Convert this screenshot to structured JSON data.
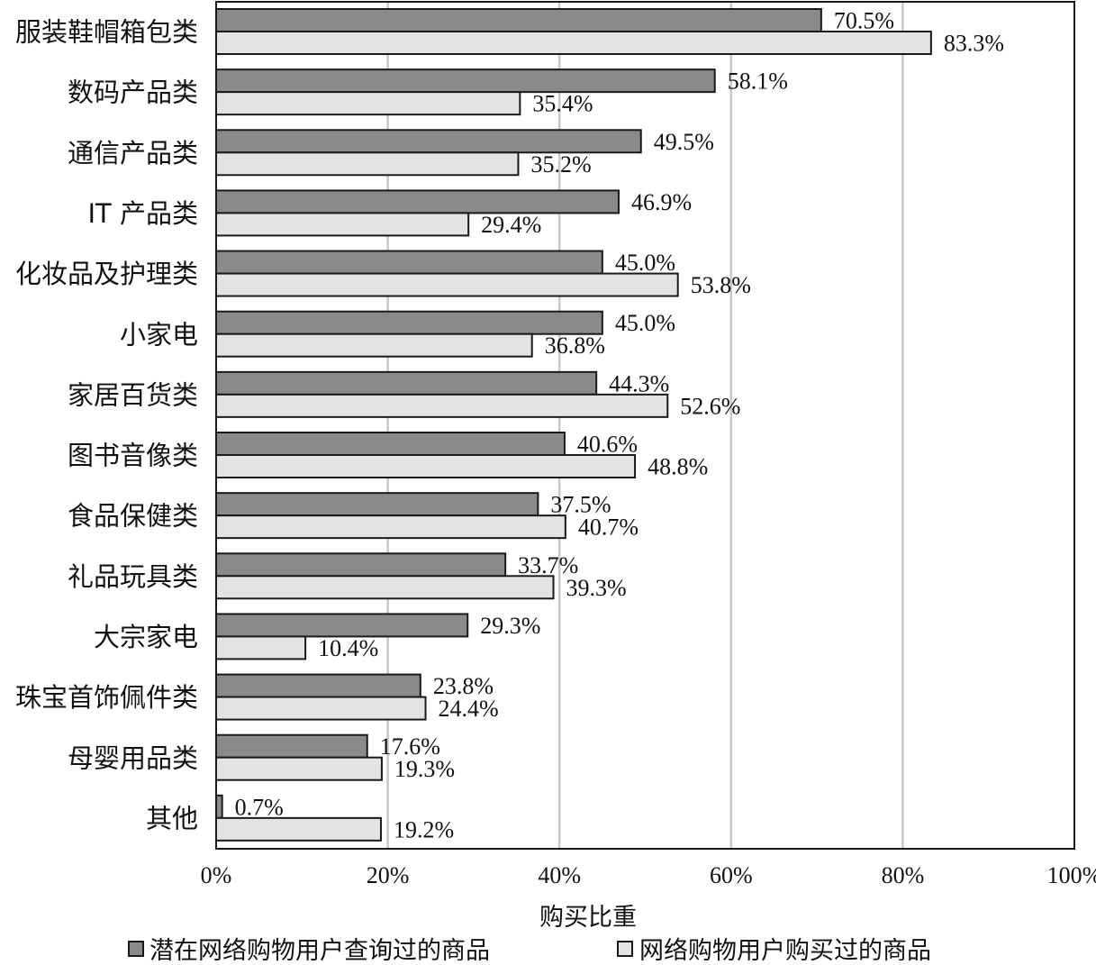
{
  "chart_data": {
    "type": "bar",
    "orientation": "horizontal",
    "categories": [
      "服装鞋帽箱包类",
      "数码产品类",
      "通信产品类",
      "IT 产品类",
      "化妆品及护理类",
      "小家电",
      "家居百货类",
      "图书音像类",
      "食品保健类",
      "礼品玩具类",
      "大宗家电",
      "珠宝首饰佩件类",
      "母婴用品类",
      "其他"
    ],
    "series": [
      {
        "name": "潜在网络购物用户查询过的商品",
        "color": "#8a8a8a",
        "values": [
          70.5,
          58.1,
          49.5,
          46.9,
          45.0,
          45.0,
          44.3,
          40.6,
          37.5,
          33.7,
          29.3,
          23.8,
          17.6,
          0.7
        ],
        "labels": [
          "70.5%",
          "58.1%",
          "49.5%",
          "46.9%",
          "45.0%",
          "45.0%",
          "44.3%",
          "40.6%",
          "37.5%",
          "33.7%",
          "29.3%",
          "23.8%",
          "17.6%",
          "0.7%"
        ]
      },
      {
        "name": "网络购物用户购买过的商品",
        "color": "#e3e3e3",
        "values": [
          83.3,
          35.4,
          35.2,
          29.4,
          53.8,
          36.8,
          52.6,
          48.8,
          40.7,
          39.3,
          10.4,
          24.4,
          19.3,
          19.2
        ],
        "labels": [
          "83.3%",
          "35.4%",
          "35.2%",
          "29.4%",
          "53.8%",
          "36.8%",
          "52.6%",
          "48.8%",
          "40.7%",
          "39.3%",
          "10.4%",
          "24.4%",
          "19.3%",
          "19.2%"
        ]
      }
    ],
    "xlabel": "购买比重",
    "xlim": [
      0,
      100
    ],
    "xticks": [
      0,
      20,
      40,
      60,
      80,
      100
    ],
    "xtick_labels": [
      "0%",
      "20%",
      "40%",
      "60%",
      "80%",
      "100%"
    ],
    "grid": "vertical",
    "legend": "bottom"
  }
}
